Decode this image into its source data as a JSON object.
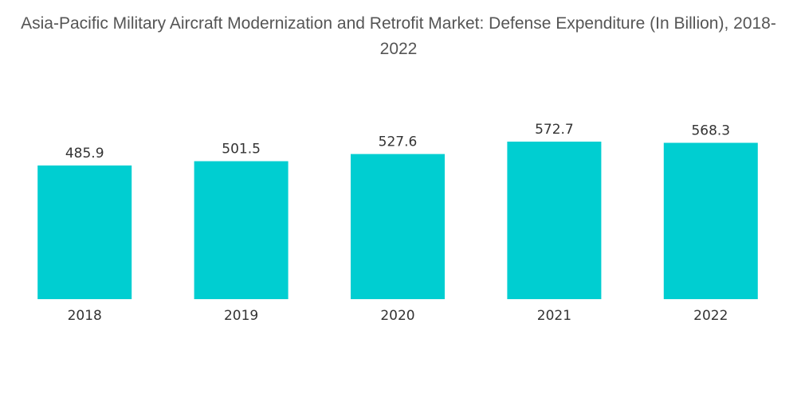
{
  "chart_data": {
    "type": "bar",
    "title": "Asia-Pacific Military Aircraft Modernization and Retrofit Market: Defense Expenditure (In Billion), 2018-2022",
    "categories": [
      "2018",
      "2019",
      "2020",
      "2021",
      "2022"
    ],
    "values": [
      485.9,
      501.5,
      527.6,
      572.7,
      568.3
    ],
    "value_labels": [
      "485.9",
      "501.5",
      "527.6",
      "572.7",
      "568.3"
    ],
    "xlabel": "",
    "ylabel": "",
    "ylim": [
      0,
      572.7
    ],
    "bar_color": "#00CED1",
    "grid": false,
    "legend": "none"
  }
}
